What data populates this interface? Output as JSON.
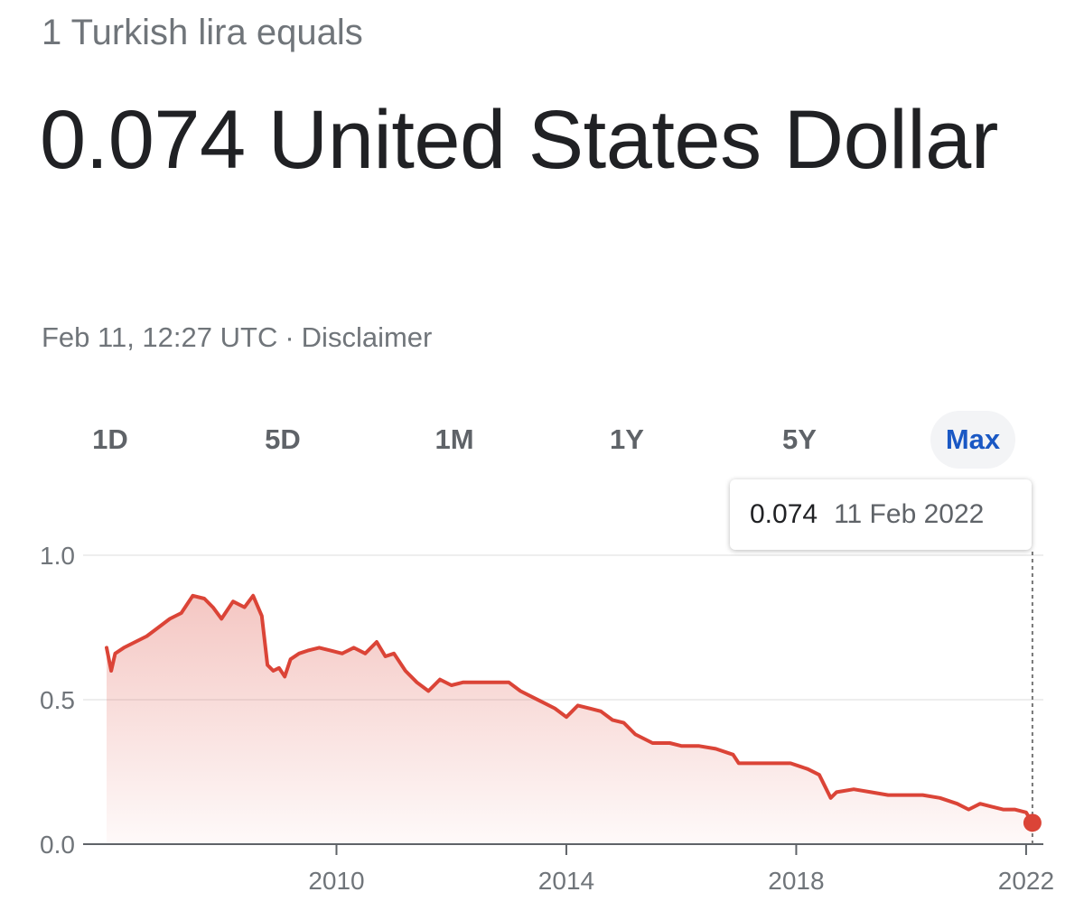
{
  "header": {
    "subtitle": "1 Turkish lira equals",
    "value_text": "0.074 United States Dollar",
    "timestamp": "Feb 11, 12:27 UTC",
    "separator": "·",
    "disclaimer": "Disclaimer"
  },
  "ranges": {
    "items": [
      "1D",
      "5D",
      "1M",
      "1Y",
      "5Y",
      "Max"
    ],
    "selected": "Max"
  },
  "tooltip": {
    "value": "0.074",
    "date": "11 Feb 2022"
  },
  "colors": {
    "line": "#db4437",
    "area_top": "#db4437",
    "active_tab": "#1a58c4",
    "grid": "#eeeeee",
    "axis": "#5f6368"
  },
  "chart_data": {
    "type": "area",
    "title": "",
    "xlabel": "",
    "ylabel": "",
    "xlim": [
      2006.0,
      2022.3
    ],
    "ylim": [
      0.0,
      1.0
    ],
    "y_ticks": [
      "0.0",
      "0.5",
      "1.0"
    ],
    "x_ticks": [
      "2010",
      "2014",
      "2018",
      "2022"
    ],
    "grid": true,
    "series": [
      {
        "x": [
          2006.0,
          2006.08,
          2006.15,
          2006.3,
          2006.5,
          2006.7,
          2006.9,
          2007.1,
          2007.3,
          2007.5,
          2007.7,
          2007.85,
          2008.0,
          2008.2,
          2008.4,
          2008.55,
          2008.7,
          2008.8,
          2008.9,
          2009.0,
          2009.1,
          2009.2,
          2009.35,
          2009.5,
          2009.7,
          2009.9,
          2010.1,
          2010.3,
          2010.5,
          2010.7,
          2010.85,
          2011.0,
          2011.2,
          2011.4,
          2011.6,
          2011.8,
          2012.0,
          2012.2,
          2012.4,
          2012.6,
          2012.8,
          2013.0,
          2013.2,
          2013.4,
          2013.6,
          2013.8,
          2014.0,
          2014.2,
          2014.4,
          2014.6,
          2014.8,
          2015.0,
          2015.2,
          2015.5,
          2015.8,
          2016.0,
          2016.3,
          2016.6,
          2016.9,
          2017.0,
          2017.3,
          2017.6,
          2017.9,
          2018.2,
          2018.4,
          2018.6,
          2018.7,
          2019.0,
          2019.3,
          2019.6,
          2019.9,
          2020.2,
          2020.5,
          2020.8,
          2021.0,
          2021.2,
          2021.4,
          2021.6,
          2021.8,
          2022.0,
          2022.11
        ],
        "values": [
          0.68,
          0.6,
          0.66,
          0.68,
          0.7,
          0.72,
          0.75,
          0.78,
          0.8,
          0.86,
          0.85,
          0.82,
          0.78,
          0.84,
          0.82,
          0.86,
          0.79,
          0.62,
          0.6,
          0.61,
          0.58,
          0.64,
          0.66,
          0.67,
          0.68,
          0.67,
          0.66,
          0.68,
          0.66,
          0.7,
          0.65,
          0.66,
          0.6,
          0.56,
          0.53,
          0.57,
          0.55,
          0.56,
          0.56,
          0.56,
          0.56,
          0.56,
          0.53,
          0.51,
          0.49,
          0.47,
          0.44,
          0.48,
          0.47,
          0.46,
          0.43,
          0.42,
          0.38,
          0.35,
          0.35,
          0.34,
          0.34,
          0.33,
          0.31,
          0.28,
          0.28,
          0.28,
          0.28,
          0.26,
          0.24,
          0.16,
          0.18,
          0.19,
          0.18,
          0.17,
          0.17,
          0.17,
          0.16,
          0.14,
          0.12,
          0.14,
          0.13,
          0.12,
          0.12,
          0.11,
          0.074
        ]
      }
    ],
    "highlight_point": {
      "x": 2022.11,
      "y": 0.074
    }
  }
}
